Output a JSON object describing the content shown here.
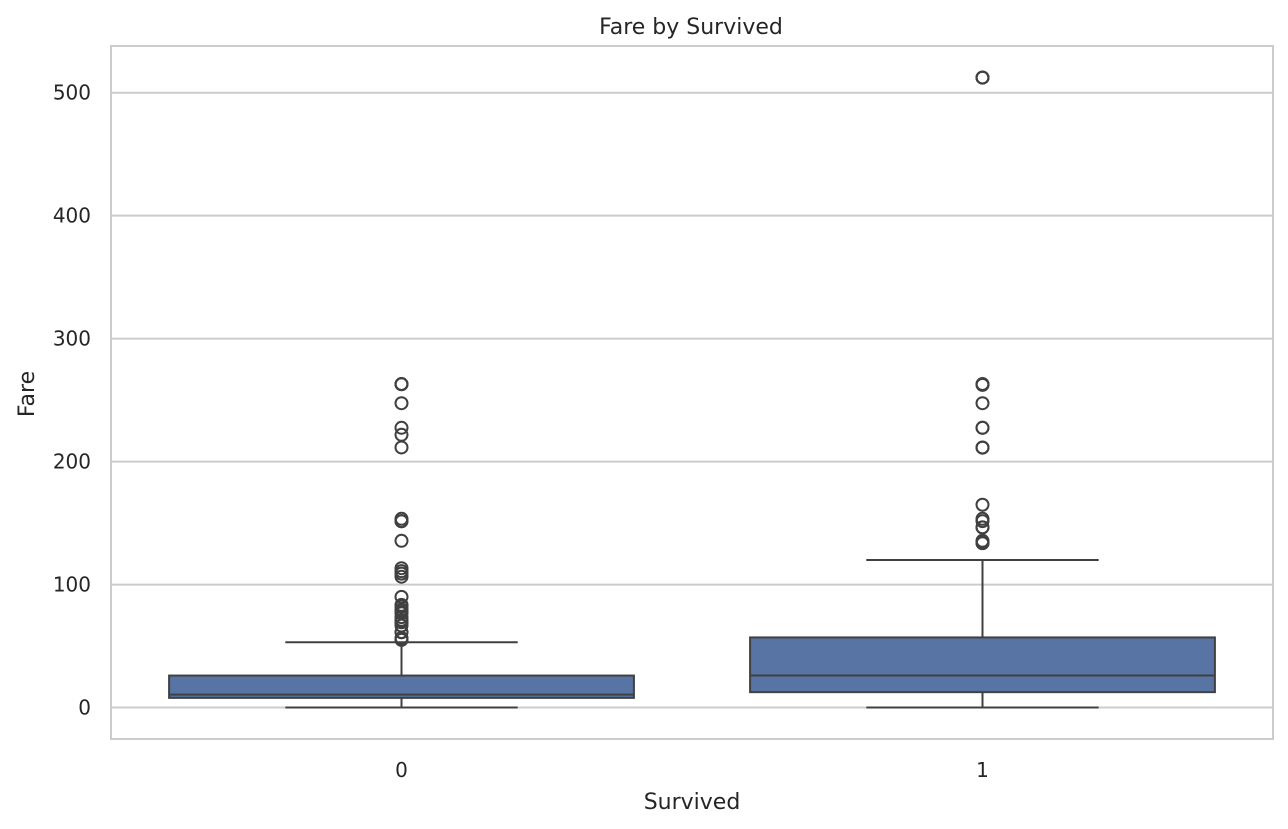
{
  "chart_data": {
    "type": "box",
    "title": "Fare by Survived",
    "xlabel": "Survived",
    "ylabel": "Fare",
    "ylim": [
      -25.6,
      538.0
    ],
    "yticks": [
      0,
      100,
      200,
      300,
      400,
      500
    ],
    "grid": true,
    "colors": {
      "box": "#5874a4",
      "line": "#404040",
      "grid": "#cccccc",
      "frame": "#cccccc"
    },
    "categories": [
      "0",
      "1"
    ],
    "boxes": [
      {
        "category": "0",
        "whisker_low": 0.0,
        "q1": 7.85,
        "median": 10.5,
        "q3": 26.0,
        "whisker_high": 53.1,
        "outliers": [
          263,
          263,
          263,
          263,
          247.5,
          227.5,
          221.8,
          211.5,
          153.5,
          151.6,
          151.5,
          135.6,
          113.3,
          110.9,
          108.9,
          106.4,
          90.0,
          83.5,
          82.2,
          79.7,
          78.9,
          77.3,
          76.7,
          73.5,
          71.3,
          69.6,
          69.5,
          69.3,
          66.6,
          61.2,
          61.3,
          56.5,
          55.9,
          55.0
        ]
      },
      {
        "category": "1",
        "whisker_low": 0.0,
        "q1": 12.5,
        "median": 26.0,
        "q3": 57.0,
        "whisker_high": 120.0,
        "outliers": [
          512.3,
          512.3,
          512.3,
          263,
          263,
          262.4,
          247.5,
          227.5,
          227.5,
          211.5,
          211.3,
          164.9,
          153.5,
          151.6,
          146.5,
          146.5,
          135.6,
          134.5,
          133.7,
          133.65
        ]
      }
    ]
  }
}
